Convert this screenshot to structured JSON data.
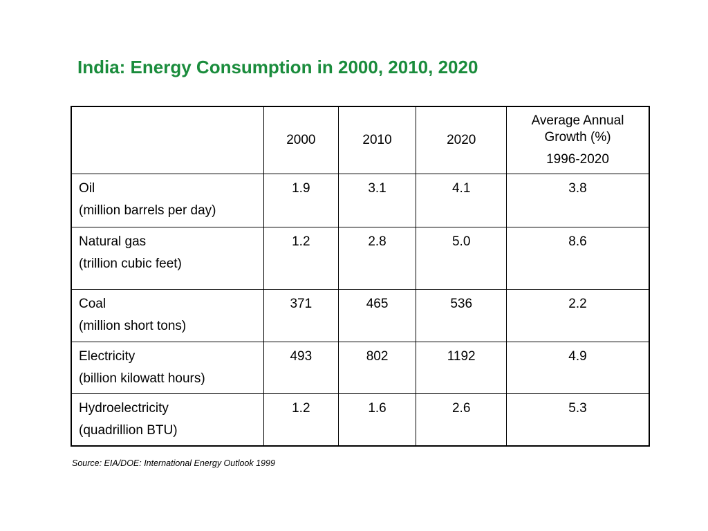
{
  "title": "India: Energy Consumption in 2000, 2010, 2020",
  "title_color": "#1a8c3c",
  "table": {
    "header": {
      "blank": "",
      "y2000": "2000",
      "y2010": "2010",
      "y2020": "2020",
      "growth_line1": "Average Annual",
      "growth_line2": "Growth (%)",
      "growth_line3": "1996-2020"
    },
    "rows": [
      {
        "name": "Oil",
        "unit": "(million barrels per day)",
        "y2000": "1.9",
        "y2010": "3.1",
        "y2020": "4.1",
        "growth": "3.8"
      },
      {
        "name": "Natural gas",
        "unit": "(trillion cubic feet)",
        "y2000": "1.2",
        "y2010": "2.8",
        "y2020": "5.0",
        "growth": "8.6"
      },
      {
        "name": "Coal",
        "unit": "(million short tons)",
        "y2000": "371",
        "y2010": "465",
        "y2020": "536",
        "growth": "2.2"
      },
      {
        "name": "Electricity",
        "unit": "(billion kilowatt hours)",
        "y2000": "493",
        "y2010": "802",
        "y2020": "1192",
        "growth": "4.9"
      },
      {
        "name": "Hydroelectricity",
        "unit": "(quadrillion BTU)",
        "y2000": "1.2",
        "y2010": "1.6",
        "y2020": "2.6",
        "growth": "5.3"
      }
    ]
  },
  "source": "Source: EIA/DOE: International Energy Outlook 1999"
}
